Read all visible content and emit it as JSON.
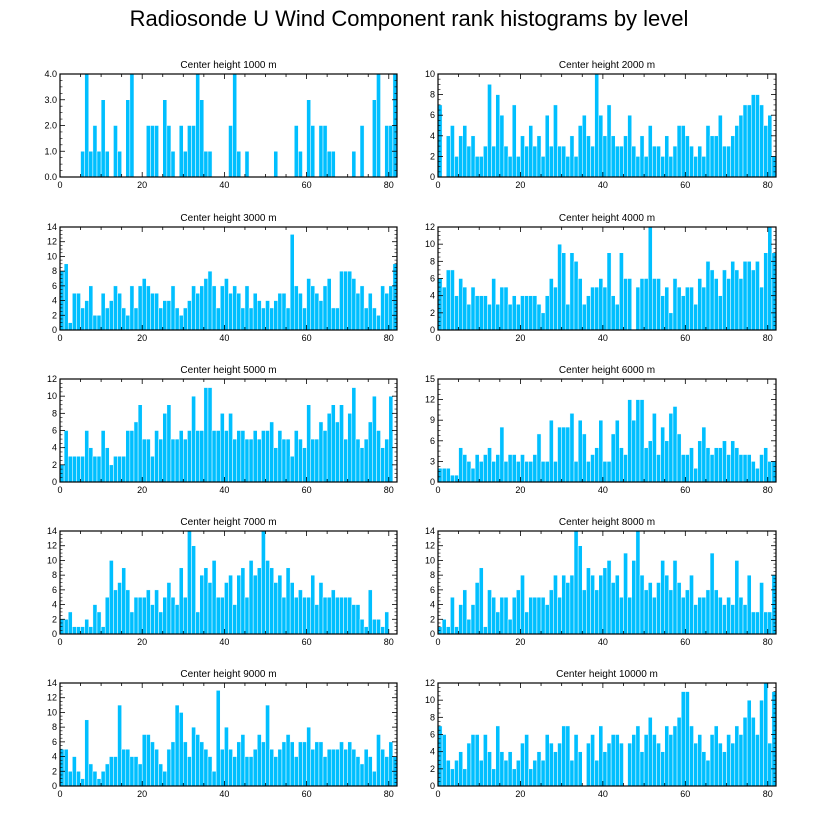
{
  "title": "Radiosonde U Wind Component rank histograms by level",
  "colors": {
    "bar": "#00bfff",
    "bar_edge": "#ffffff",
    "axis": "#000000"
  },
  "chart_data": [
    {
      "type": "bar",
      "title": "Center height 1000 m",
      "xlim": [
        0,
        82
      ],
      "ylim": [
        0,
        4
      ],
      "xticks": [
        "0",
        "20",
        "40",
        "60",
        "80"
      ],
      "yticks": [
        "0.0",
        "1.0",
        "2.0",
        "3.0",
        "4.0"
      ],
      "values": [
        0,
        0,
        0,
        0,
        0,
        1,
        4,
        1,
        2,
        1,
        3,
        1,
        0,
        2,
        1,
        0,
        3,
        4,
        0,
        0,
        0,
        2,
        2,
        2,
        0,
        3,
        2,
        1,
        0,
        2,
        1,
        2,
        2,
        4,
        3,
        1,
        1,
        0,
        0,
        0,
        0,
        2,
        4,
        1,
        0,
        1,
        0,
        0,
        0,
        0,
        0,
        0,
        1,
        0,
        0,
        0,
        0,
        2,
        1,
        0,
        3,
        2,
        0,
        2,
        2,
        1,
        1,
        0,
        0,
        0,
        0,
        1,
        0,
        2,
        0,
        0,
        3,
        4,
        0,
        2,
        2,
        4
      ]
    },
    {
      "type": "bar",
      "title": "Center height 2000 m",
      "xlim": [
        0,
        82
      ],
      "ylim": [
        0,
        10
      ],
      "xticks": [
        "0",
        "20",
        "40",
        "60",
        "80"
      ],
      "yticks": [
        "0",
        "2",
        "4",
        "6",
        "8",
        "10"
      ],
      "values": [
        7,
        0,
        4,
        5,
        2,
        4,
        5,
        3,
        4,
        2,
        2,
        3,
        9,
        3,
        8,
        6,
        3,
        2,
        7,
        2,
        4,
        3,
        5,
        3,
        4,
        2,
        6,
        3,
        7,
        3,
        3,
        2,
        4,
        2,
        5,
        6,
        4,
        3,
        10,
        6,
        4,
        7,
        4,
        3,
        3,
        4,
        6,
        3,
        2,
        4,
        2,
        5,
        3,
        3,
        2,
        4,
        2,
        3,
        5,
        5,
        4,
        3,
        2,
        3,
        2,
        5,
        4,
        4,
        6,
        3,
        3,
        4,
        5,
        6,
        7,
        7,
        8,
        8,
        7,
        5,
        6,
        2
      ]
    },
    {
      "type": "bar",
      "title": "Center height 3000 m",
      "xlim": [
        0,
        82
      ],
      "ylim": [
        0,
        14
      ],
      "xticks": [
        "0",
        "20",
        "40",
        "60",
        "80"
      ],
      "yticks": [
        "0",
        "2",
        "4",
        "6",
        "8",
        "10",
        "12",
        "14"
      ],
      "values": [
        8,
        9,
        1,
        5,
        5,
        3,
        4,
        6,
        2,
        2,
        5,
        3,
        4,
        6,
        5,
        3,
        2,
        6,
        3,
        6,
        7,
        6,
        5,
        5,
        3,
        4,
        4,
        6,
        3,
        2,
        3,
        4,
        6,
        5,
        6,
        7,
        8,
        6,
        3,
        6,
        7,
        5,
        6,
        5,
        3,
        6,
        3,
        5,
        4,
        3,
        4,
        3,
        4,
        5,
        5,
        3,
        13,
        6,
        5,
        3,
        7,
        6,
        5,
        4,
        6,
        7,
        3,
        3,
        8,
        8,
        8,
        7,
        5,
        6,
        3,
        5,
        3,
        2,
        6,
        5,
        6,
        9
      ]
    },
    {
      "type": "bar",
      "title": "Center height 4000 m",
      "xlim": [
        0,
        82
      ],
      "ylim": [
        0,
        12
      ],
      "xticks": [
        "0",
        "20",
        "40",
        "60",
        "80"
      ],
      "yticks": [
        "0",
        "2",
        "4",
        "6",
        "8",
        "10",
        "12"
      ],
      "values": [
        6,
        5,
        7,
        7,
        4,
        6,
        5,
        3,
        5,
        4,
        4,
        4,
        3,
        6,
        3,
        5,
        5,
        3,
        4,
        3,
        4,
        4,
        4,
        4,
        3,
        2,
        4,
        6,
        5,
        10,
        9,
        3,
        9,
        8,
        6,
        3,
        4,
        5,
        5,
        6,
        5,
        9,
        4,
        3,
        9,
        6,
        6,
        0,
        5,
        6,
        6,
        12,
        6,
        6,
        4,
        5,
        2,
        6,
        5,
        4,
        5,
        5,
        3,
        6,
        5,
        8,
        7,
        6,
        4,
        7,
        6,
        8,
        7,
        6,
        8,
        8,
        7,
        8,
        5,
        9,
        12,
        9
      ]
    },
    {
      "type": "bar",
      "title": "Center height 5000 m",
      "xlim": [
        0,
        82
      ],
      "ylim": [
        0,
        12
      ],
      "xticks": [
        "0",
        "20",
        "40",
        "60",
        "80"
      ],
      "yticks": [
        "0",
        "2",
        "4",
        "6",
        "8",
        "10",
        "12"
      ],
      "values": [
        2,
        6,
        3,
        3,
        3,
        3,
        6,
        4,
        3,
        3,
        6,
        4,
        2,
        3,
        3,
        3,
        6,
        6,
        7,
        9,
        5,
        5,
        3,
        6,
        5,
        8,
        9,
        5,
        5,
        6,
        5,
        6,
        10,
        6,
        6,
        11,
        11,
        6,
        6,
        8,
        6,
        8,
        5,
        6,
        6,
        5,
        5,
        6,
        5,
        6,
        6,
        7,
        4,
        6,
        5,
        5,
        3,
        6,
        5,
        4,
        9,
        5,
        5,
        7,
        6,
        8,
        9,
        7,
        9,
        5,
        8,
        11,
        5,
        4,
        5,
        7,
        10,
        6,
        4,
        5,
        10,
        0
      ]
    },
    {
      "type": "bar",
      "title": "Center height 6000 m",
      "xlim": [
        0,
        82
      ],
      "ylim": [
        0,
        15
      ],
      "xticks": [
        "0",
        "20",
        "40",
        "60",
        "80"
      ],
      "yticks": [
        "0",
        "3",
        "6",
        "9",
        "12",
        "15"
      ],
      "values": [
        2,
        2,
        2,
        1,
        1,
        5,
        4,
        3,
        2,
        4,
        3,
        4,
        5,
        3,
        4,
        8,
        3,
        4,
        4,
        3,
        4,
        3,
        3,
        4,
        7,
        3,
        3,
        9,
        3,
        8,
        8,
        8,
        10,
        3,
        9,
        7,
        3,
        4,
        5,
        9,
        3,
        3,
        7,
        9,
        5,
        4,
        12,
        9,
        12,
        12,
        5,
        6,
        10,
        4,
        8,
        6,
        10,
        11,
        7,
        4,
        4,
        5,
        2,
        6,
        8,
        5,
        4,
        5,
        5,
        6,
        4,
        6,
        5,
        4,
        4,
        4,
        3,
        2,
        4,
        5,
        3,
        3
      ]
    },
    {
      "type": "bar",
      "title": "Center height 7000 m",
      "xlim": [
        0,
        82
      ],
      "ylim": [
        0,
        14
      ],
      "xticks": [
        "0",
        "20",
        "40",
        "60",
        "80"
      ],
      "yticks": [
        "0",
        "2",
        "4",
        "6",
        "8",
        "10",
        "12",
        "14"
      ],
      "values": [
        2,
        2,
        3,
        1,
        1,
        1,
        2,
        1,
        4,
        3,
        1,
        5,
        10,
        6,
        7,
        9,
        6,
        3,
        5,
        5,
        5,
        6,
        4,
        6,
        3,
        5,
        7,
        5,
        4,
        9,
        5,
        14,
        12,
        3,
        8,
        9,
        7,
        10,
        5,
        5,
        7,
        8,
        4,
        8,
        9,
        5,
        10,
        8,
        9,
        14,
        10,
        9,
        7,
        8,
        5,
        9,
        7,
        5,
        6,
        5,
        5,
        8,
        4,
        7,
        5,
        5,
        6,
        5,
        5,
        5,
        5,
        4,
        4,
        2,
        1,
        6,
        2,
        2,
        1,
        3,
        0,
        0
      ]
    },
    {
      "type": "bar",
      "title": "Center height 8000 m",
      "xlim": [
        0,
        82
      ],
      "ylim": [
        0,
        14
      ],
      "xticks": [
        "0",
        "20",
        "40",
        "60",
        "80"
      ],
      "yticks": [
        "0",
        "2",
        "4",
        "6",
        "8",
        "10",
        "12",
        "14"
      ],
      "values": [
        1,
        2,
        1,
        5,
        1,
        4,
        6,
        2,
        4,
        7,
        9,
        1,
        6,
        5,
        3,
        5,
        5,
        2,
        5,
        6,
        8,
        3,
        5,
        5,
        5,
        5,
        4,
        6,
        8,
        5,
        8,
        7,
        8,
        14,
        12,
        6,
        9,
        8,
        6,
        8,
        9,
        10,
        7,
        8,
        5,
        11,
        5,
        10,
        14,
        8,
        6,
        7,
        5,
        7,
        10,
        8,
        6,
        10,
        7,
        5,
        6,
        8,
        4,
        5,
        5,
        6,
        11,
        6,
        5,
        4,
        5,
        4,
        10,
        5,
        4,
        8,
        3,
        3,
        7,
        3,
        3,
        8
      ]
    },
    {
      "type": "bar",
      "title": "Center height 9000 m",
      "xlim": [
        0,
        82
      ],
      "ylim": [
        0,
        14
      ],
      "xticks": [
        "0",
        "20",
        "40",
        "60",
        "80"
      ],
      "yticks": [
        "0",
        "2",
        "4",
        "6",
        "8",
        "10",
        "12",
        "14"
      ],
      "values": [
        5,
        5,
        2,
        4,
        2,
        1,
        9,
        3,
        2,
        1,
        2,
        3,
        4,
        4,
        11,
        5,
        5,
        4,
        4,
        3,
        7,
        7,
        6,
        5,
        3,
        2,
        5,
        6,
        11,
        10,
        6,
        4,
        8,
        7,
        6,
        5,
        4,
        2,
        13,
        5,
        8,
        5,
        4,
        6,
        7,
        4,
        4,
        5,
        7,
        6,
        11,
        5,
        4,
        5,
        6,
        7,
        6,
        4,
        6,
        6,
        8,
        5,
        6,
        6,
        4,
        5,
        5,
        5,
        6,
        5,
        6,
        5,
        4,
        3,
        5,
        4,
        2,
        7,
        5,
        4,
        6,
        4
      ]
    },
    {
      "type": "bar",
      "title": "Center height 10000 m",
      "xlim": [
        0,
        82
      ],
      "ylim": [
        0,
        12
      ],
      "xticks": [
        "0",
        "20",
        "40",
        "60",
        "80"
      ],
      "yticks": [
        "0",
        "2",
        "4",
        "6",
        "8",
        "10",
        "12"
      ],
      "values": [
        7,
        6,
        3,
        2,
        3,
        4,
        2,
        5,
        6,
        6,
        3,
        6,
        4,
        2,
        7,
        4,
        3,
        4,
        2,
        3,
        5,
        6,
        2,
        3,
        4,
        3,
        6,
        5,
        4,
        5,
        7,
        7,
        3,
        6,
        4,
        0,
        5,
        6,
        3,
        7,
        4,
        5,
        6,
        6,
        5,
        0,
        5,
        6,
        7,
        4,
        6,
        8,
        6,
        5,
        4,
        7,
        6,
        7,
        8,
        11,
        11,
        7,
        5,
        6,
        4,
        3,
        6,
        7,
        5,
        4,
        6,
        5,
        7,
        6,
        8,
        10,
        8,
        6,
        10,
        12,
        5,
        11
      ]
    }
  ]
}
